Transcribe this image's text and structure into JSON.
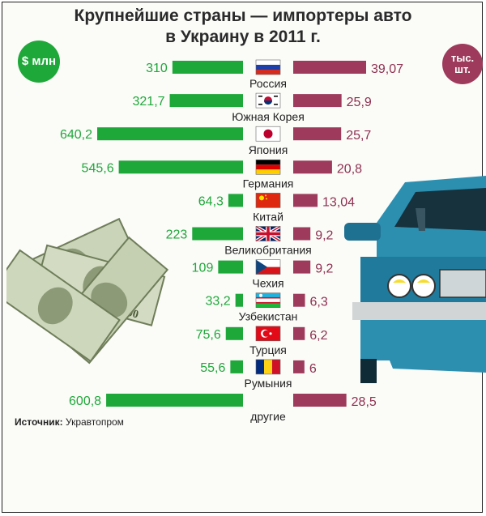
{
  "title_line1": "Крупнейшие страны — импортеры авто",
  "title_line2": "в Украину в 2011 г.",
  "badge_left": "$ млн",
  "badge_right_line1": "тыс.",
  "badge_right_line2": "шт.",
  "source_label": "Источник:",
  "source_value": "Укравтопром",
  "colors": {
    "money": "#1fa83a",
    "units": "#9e3b5c",
    "text_money": "#1fa83a",
    "text_units": "#8e3050"
  },
  "icons": [
    "dollar-banknotes-illustration",
    "blue-car-illustration"
  ],
  "chart_data": {
    "type": "bar",
    "categories": [
      "Россия",
      "Южная Корея",
      "Япония",
      "Германия",
      "Китай",
      "Великобритания",
      "Чехия",
      "Узбекистан",
      "Турция",
      "Румыния",
      "другие"
    ],
    "flags": [
      "russia-flag-icon",
      "south-korea-flag-icon",
      "japan-flag-icon",
      "germany-flag-icon",
      "china-flag-icon",
      "uk-flag-icon",
      "czech-flag-icon",
      "uzbekistan-flag-icon",
      "turkey-flag-icon",
      "romania-flag-icon",
      ""
    ],
    "series": [
      {
        "values": [
          310,
          321.7,
          640.2,
          545.6,
          64.3,
          223,
          109,
          33.2,
          75.6,
          55.6,
          600.8
        ],
        "labels": [
          "310",
          "321,7",
          "640,2",
          "545,6",
          "64,3",
          "223",
          "109",
          "33,2",
          "75,6",
          "55,6",
          "600,8"
        ]
      },
      {
        "values": [
          39.07,
          25.9,
          25.7,
          20.8,
          13.04,
          9.2,
          9.2,
          6.3,
          6.2,
          6,
          28.5
        ],
        "labels": [
          "39,07",
          "25,9",
          "25,7",
          "20,8",
          "13,04",
          "9,2",
          "9,2",
          "6,3",
          "6,2",
          "6",
          "28,5"
        ]
      }
    ]
  }
}
